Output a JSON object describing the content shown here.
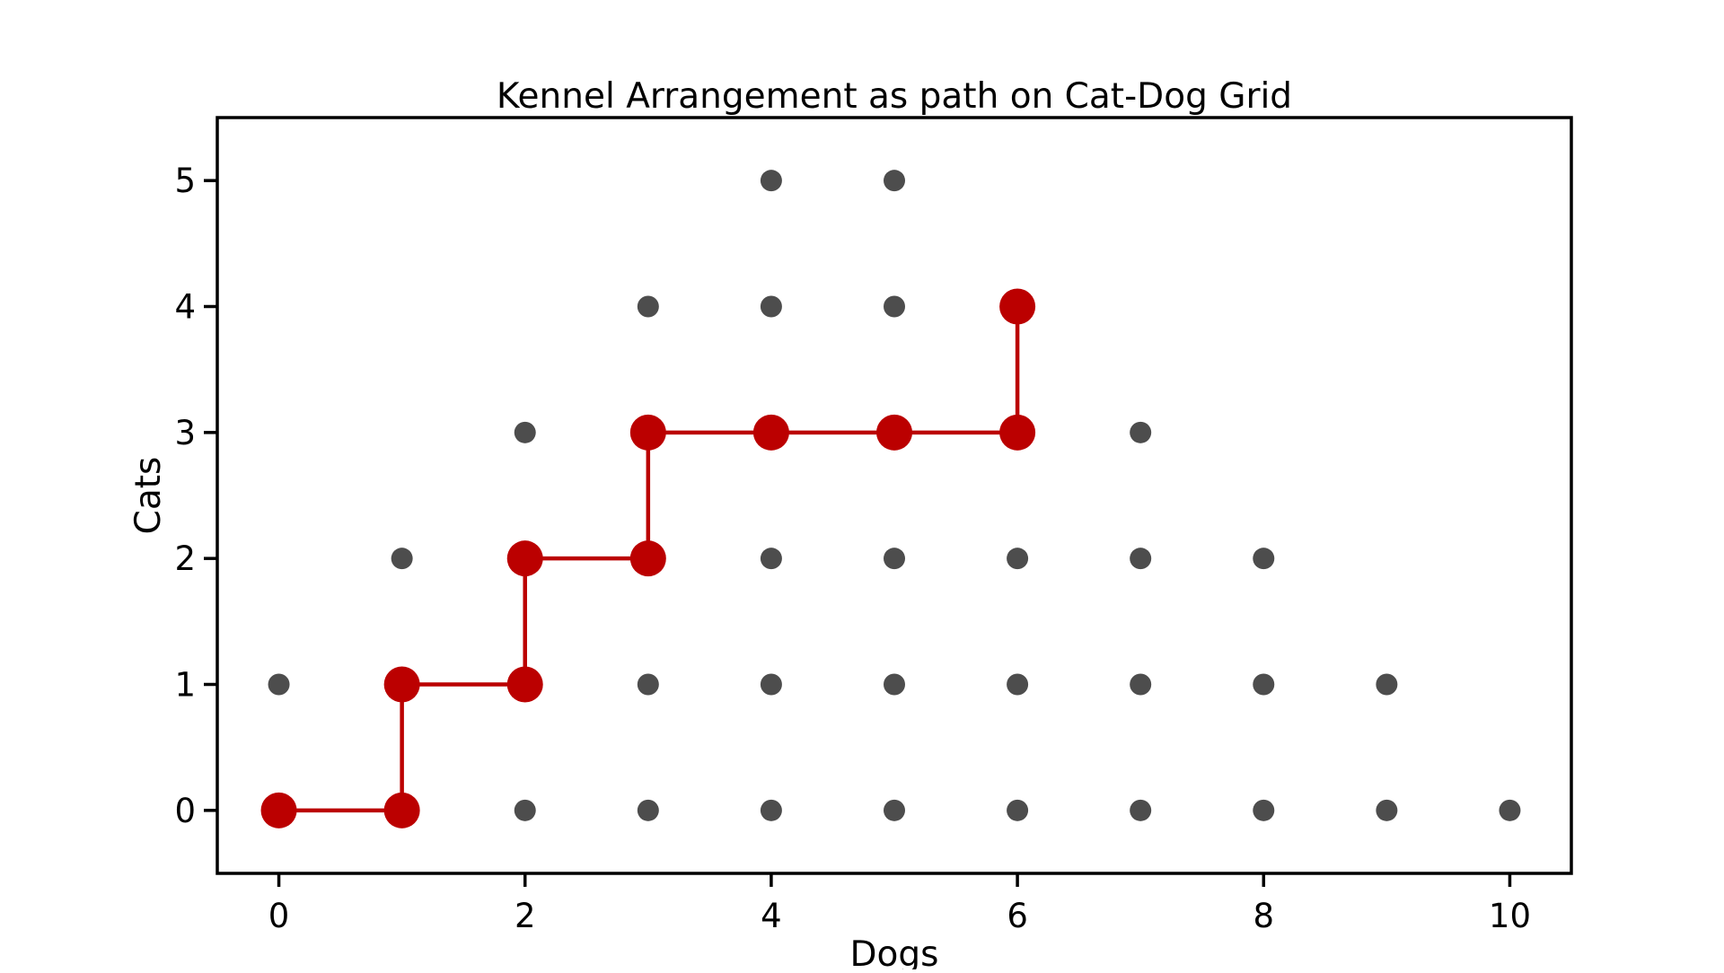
{
  "chart_data": {
    "type": "scatter",
    "title": "Kennel Arrangement as path on Cat-Dog Grid",
    "xlabel": "Dogs",
    "ylabel": "Cats",
    "xlim": [
      -0.5,
      10.5
    ],
    "ylim": [
      -0.5,
      5.5
    ],
    "xticks": [
      0,
      2,
      4,
      6,
      8,
      10
    ],
    "yticks": [
      0,
      1,
      2,
      3,
      4,
      5
    ],
    "grid": false,
    "grid_points": {
      "color": "#4d4d4d",
      "points": [
        [
          0,
          0
        ],
        [
          1,
          0
        ],
        [
          2,
          0
        ],
        [
          3,
          0
        ],
        [
          4,
          0
        ],
        [
          5,
          0
        ],
        [
          6,
          0
        ],
        [
          7,
          0
        ],
        [
          8,
          0
        ],
        [
          9,
          0
        ],
        [
          10,
          0
        ],
        [
          0,
          1
        ],
        [
          1,
          1
        ],
        [
          2,
          1
        ],
        [
          3,
          1
        ],
        [
          4,
          1
        ],
        [
          5,
          1
        ],
        [
          6,
          1
        ],
        [
          7,
          1
        ],
        [
          8,
          1
        ],
        [
          9,
          1
        ],
        [
          1,
          2
        ],
        [
          2,
          2
        ],
        [
          3,
          2
        ],
        [
          4,
          2
        ],
        [
          5,
          2
        ],
        [
          6,
          2
        ],
        [
          7,
          2
        ],
        [
          8,
          2
        ],
        [
          2,
          3
        ],
        [
          3,
          3
        ],
        [
          4,
          3
        ],
        [
          5,
          3
        ],
        [
          6,
          3
        ],
        [
          7,
          3
        ],
        [
          3,
          4
        ],
        [
          4,
          4
        ],
        [
          5,
          4
        ],
        [
          6,
          4
        ],
        [
          4,
          5
        ],
        [
          5,
          5
        ]
      ]
    },
    "path": {
      "color": "#bb0000",
      "points": [
        [
          0,
          0
        ],
        [
          1,
          0
        ],
        [
          1,
          1
        ],
        [
          2,
          1
        ],
        [
          2,
          2
        ],
        [
          3,
          2
        ],
        [
          3,
          3
        ],
        [
          4,
          3
        ],
        [
          5,
          3
        ],
        [
          6,
          3
        ],
        [
          6,
          4
        ]
      ]
    }
  }
}
